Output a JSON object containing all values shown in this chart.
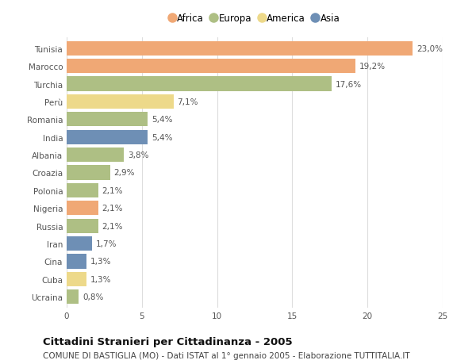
{
  "countries": [
    "Tunisia",
    "Marocco",
    "Turchia",
    "Perù",
    "Romania",
    "India",
    "Albania",
    "Croazia",
    "Polonia",
    "Nigeria",
    "Russia",
    "Iran",
    "Cina",
    "Cuba",
    "Ucraina"
  ],
  "values": [
    23.0,
    19.2,
    17.6,
    7.1,
    5.4,
    5.4,
    3.8,
    2.9,
    2.1,
    2.1,
    2.1,
    1.7,
    1.3,
    1.3,
    0.8
  ],
  "labels": [
    "23,0%",
    "19,2%",
    "17,6%",
    "7,1%",
    "5,4%",
    "5,4%",
    "3,8%",
    "2,9%",
    "2,1%",
    "2,1%",
    "2,1%",
    "1,7%",
    "1,3%",
    "1,3%",
    "0,8%"
  ],
  "continents": [
    "Africa",
    "Africa",
    "Europa",
    "America",
    "Europa",
    "Asia",
    "Europa",
    "Europa",
    "Europa",
    "Africa",
    "Europa",
    "Asia",
    "Asia",
    "America",
    "Europa"
  ],
  "colors": {
    "Africa": "#F0A875",
    "Europa": "#AEBF84",
    "America": "#EDD98A",
    "Asia": "#6E8FB5"
  },
  "xlim": [
    0,
    25
  ],
  "xticks": [
    0,
    5,
    10,
    15,
    20,
    25
  ],
  "title": "Cittadini Stranieri per Cittadinanza - 2005",
  "subtitle": "COMUNE DI BASTIGLIA (MO) - Dati ISTAT al 1° gennaio 2005 - Elaborazione TUTTITALIA.IT",
  "background_color": "#ffffff",
  "grid_color": "#dddddd",
  "bar_height": 0.82,
  "label_fontsize": 7.5,
  "tick_fontsize": 7.5,
  "title_fontsize": 9.5,
  "subtitle_fontsize": 7.5,
  "legend_order": [
    "Africa",
    "Europa",
    "America",
    "Asia"
  ]
}
